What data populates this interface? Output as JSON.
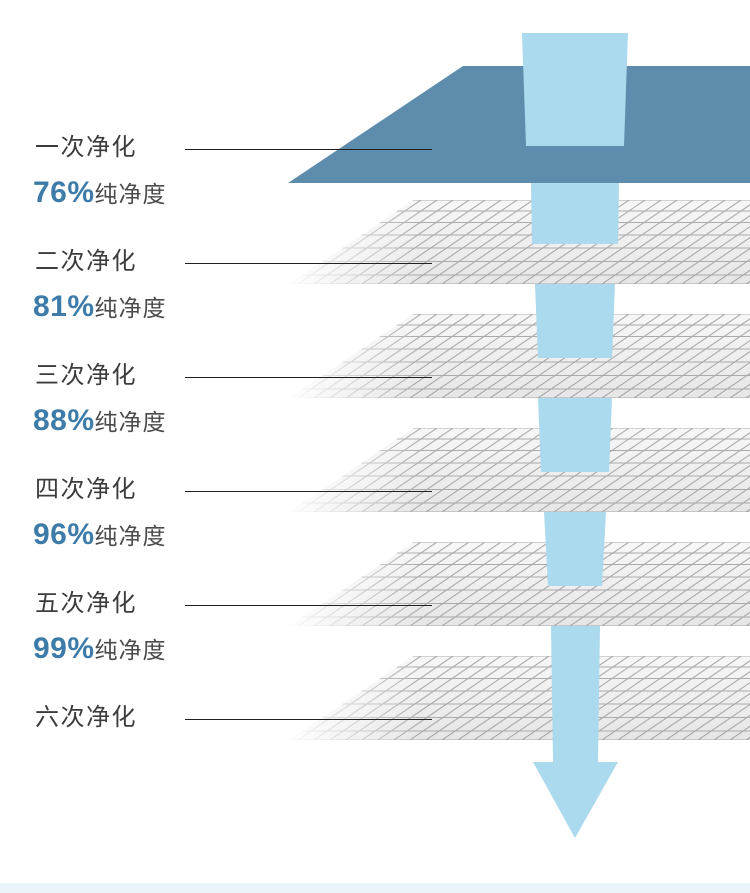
{
  "diagram": {
    "stages": [
      {
        "label": "一次净化",
        "purity": "76%",
        "purity_suffix": "纯净度",
        "filter_type": "solid-plate"
      },
      {
        "label": "二次净化",
        "purity": "81%",
        "purity_suffix": "纯净度",
        "filter_type": "mesh"
      },
      {
        "label": "三次净化",
        "purity": "88%",
        "purity_suffix": "纯净度",
        "filter_type": "mesh"
      },
      {
        "label": "四次净化",
        "purity": "96%",
        "purity_suffix": "纯净度",
        "filter_type": "mesh"
      },
      {
        "label": "五次净化",
        "purity": "99%",
        "purity_suffix": "纯净度",
        "filter_type": "mesh"
      },
      {
        "label": "六次净化",
        "purity": "",
        "purity_suffix": "",
        "filter_type": "mesh"
      }
    ],
    "flow_icon": "down-arrow",
    "colors": {
      "layer_solid": "#5e8cad",
      "water": "#abd9ee",
      "mesh_line": "#9b9b9b",
      "mesh_fill_top": "#f7f7f7",
      "mesh_fill_bottom": "#e6e6e6",
      "label_text": "#3c3c3c",
      "percent_accent": "#3d7ca9",
      "percent_suffix_text": "#4b4b4b",
      "leader_line": "#1f1f1f",
      "footer_strip": "#eaf5f9"
    }
  }
}
